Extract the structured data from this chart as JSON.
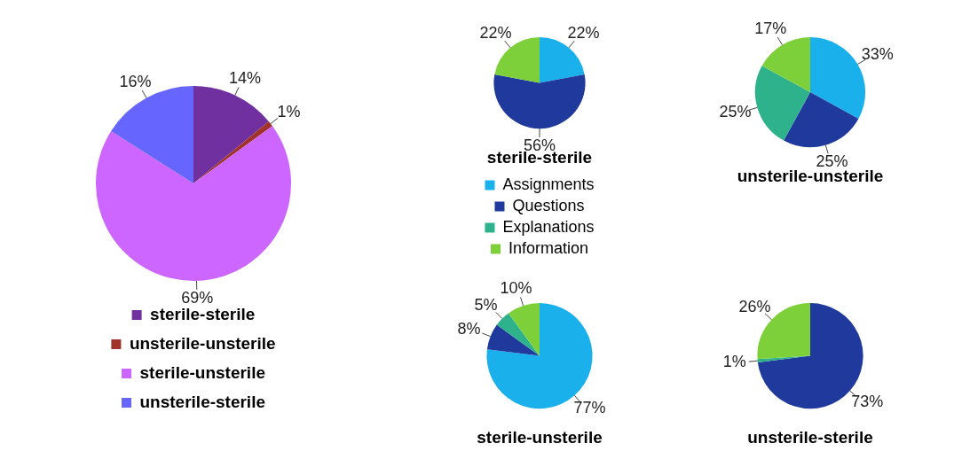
{
  "chart_data": [
    {
      "type": "pie",
      "categories": [
        "sterile-sterile",
        "unsterile-unsterile",
        "sterile-unsterile",
        "unsterile-sterile"
      ],
      "values": [
        14,
        1,
        69,
        16
      ],
      "colors": [
        "#7030a0",
        "#a0342c",
        "#cc66ff",
        "#6666ff"
      ],
      "value_labels": [
        "14%",
        "1%",
        "69%",
        "16%"
      ],
      "legend": "bottom"
    },
    {
      "type": "pie",
      "title": "sterile-sterile",
      "categories": [
        "Assignments",
        "Questions",
        "Explanations",
        "Information"
      ],
      "values": [
        22,
        56,
        0,
        22
      ],
      "colors": [
        "#1ab0ec",
        "#1f3a9c",
        "#2db28c",
        "#7ed03a"
      ],
      "value_labels": [
        "22%",
        "56%",
        null,
        "22%"
      ],
      "legend": "bottom"
    },
    {
      "type": "pie",
      "title": "unsterile-unsterile",
      "categories": [
        null,
        null,
        null,
        null
      ],
      "values": [
        33,
        25,
        25,
        17
      ],
      "colors": [
        "#1ab0ec",
        "#1f3a9c",
        "#2db28c",
        "#7ed03a"
      ],
      "value_labels": [
        "33%",
        "25%",
        "25%",
        "17%"
      ]
    },
    {
      "type": "pie",
      "title": "sterile-unsterile",
      "categories": [
        null,
        null,
        null,
        null
      ],
      "values": [
        77,
        8,
        5,
        10
      ],
      "colors": [
        "#1ab0ec",
        "#1f3a9c",
        "#2db28c",
        "#7ed03a"
      ],
      "value_labels": [
        "77%",
        "8%",
        "5%",
        "10%"
      ]
    },
    {
      "type": "pie",
      "title": "unsterile-sterile",
      "categories": [
        null,
        null,
        null,
        null
      ],
      "values": [
        0,
        73,
        1,
        26
      ],
      "colors": [
        "#1ab0ec",
        "#1f3a9c",
        "#2db28c",
        "#7ed03a"
      ],
      "value_labels": [
        null,
        "73%",
        "1%",
        "26%"
      ]
    }
  ]
}
